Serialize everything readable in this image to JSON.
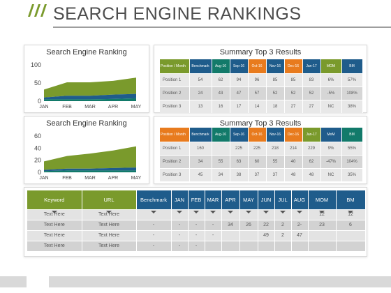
{
  "title": "SEARCH ENGINE RANKINGS",
  "colors": {
    "green": "#7a9a2c",
    "blue": "#1f5c8b",
    "teal": "#127a6a",
    "orange": "#e87b1e",
    "gray_header": "#636363"
  },
  "charts": {
    "top_title": "Search Engine Ranking",
    "bottom_title": "Search Engine Ranking"
  },
  "chart_data": [
    {
      "type": "area",
      "title": "Search Engine Ranking",
      "categories": [
        "JAN",
        "FEB",
        "MAR",
        "APR",
        "MAY"
      ],
      "ylim": [
        0,
        100
      ],
      "yticks": [
        "0",
        "50",
        "100"
      ],
      "series": [
        {
          "values": [
            22,
            37,
            37,
            38,
            45
          ]
        },
        {
          "values": [
            5,
            10,
            10,
            12,
            12
          ]
        },
        {
          "values": [
            5,
            5,
            5,
            6,
            8
          ]
        }
      ]
    },
    {
      "type": "area",
      "title": "Search Engine Ranking",
      "categories": [
        "JAN",
        "FEB",
        "MAR",
        "APR",
        "MAY"
      ],
      "ylim": [
        0,
        60
      ],
      "yticks": [
        "0",
        "20",
        "40",
        "60"
      ],
      "series": [
        {
          "values": [
            14,
            21,
            25,
            29,
            35
          ]
        },
        {
          "values": [
            2,
            3,
            3,
            4,
            5
          ]
        },
        {
          "values": [
            2,
            3,
            3,
            3,
            3
          ]
        }
      ]
    }
  ],
  "summary_title_1": "Summary Top 3 Results",
  "summary_title_2": "Summary Top 3 Results",
  "summary1": {
    "headers": [
      "Position / Month",
      "Benchmark",
      "Aug-16",
      "Sep-16",
      "Oct-16",
      "Nov-16",
      "Dec-16",
      "Jan-17",
      "MOM",
      "BM"
    ],
    "rows": [
      [
        "Position 1",
        "54",
        "62",
        "94",
        "96",
        "85",
        "85",
        "83",
        "6%",
        "57%"
      ],
      [
        "Position 2",
        "24",
        "43",
        "47",
        "57",
        "52",
        "52",
        "52",
        "-5%",
        "108%"
      ],
      [
        "Position 3",
        "13",
        "16",
        "17",
        "14",
        "18",
        "27",
        "27",
        "NC",
        "38%"
      ]
    ]
  },
  "summary2": {
    "headers": [
      "Position / Month",
      "Benchmark",
      "Aug-16",
      "Sep-16",
      "Oct-16",
      "Nov-16",
      "Dec-16",
      "Jan-17",
      "MoM",
      "BM"
    ],
    "rows": [
      [
        "Position 1",
        "160",
        "",
        "225",
        "225",
        "218",
        "214",
        "229",
        "9%",
        "55%"
      ],
      [
        "Position 2",
        "34",
        "55",
        "63",
        "60",
        "55",
        "40",
        "62",
        "-47%",
        "104%"
      ],
      [
        "Position 3",
        "45",
        "34",
        "38",
        "37",
        "37",
        "48",
        "48",
        "NC",
        "35%"
      ]
    ]
  },
  "bottom_table": {
    "headers": [
      "Keyword",
      "URL",
      "Benchmark",
      "JAN",
      "FEB",
      "MAR",
      "APR",
      "MAY",
      "JUN",
      "JUL",
      "AUG",
      "MOM",
      "BM"
    ],
    "rows": [
      [
        "Text Here",
        "Text Here",
        "",
        "",
        "",
        "",
        "",
        "",
        "",
        "",
        "",
        "12",
        "12"
      ],
      [
        "Text Here",
        "Text Here",
        "-",
        "-",
        "-",
        "-",
        "34",
        "26",
        "22",
        "2",
        "2-",
        "23",
        "6"
      ],
      [
        "Text Here",
        "Text Here",
        "-",
        "-",
        "-",
        "-",
        "",
        "",
        "49",
        "2",
        "47",
        "",
        ""
      ],
      [
        "Text Here",
        "Text Here",
        "-",
        "-",
        "-",
        "",
        "",
        "",
        "",
        "",
        "",
        "",
        ""
      ]
    ]
  }
}
